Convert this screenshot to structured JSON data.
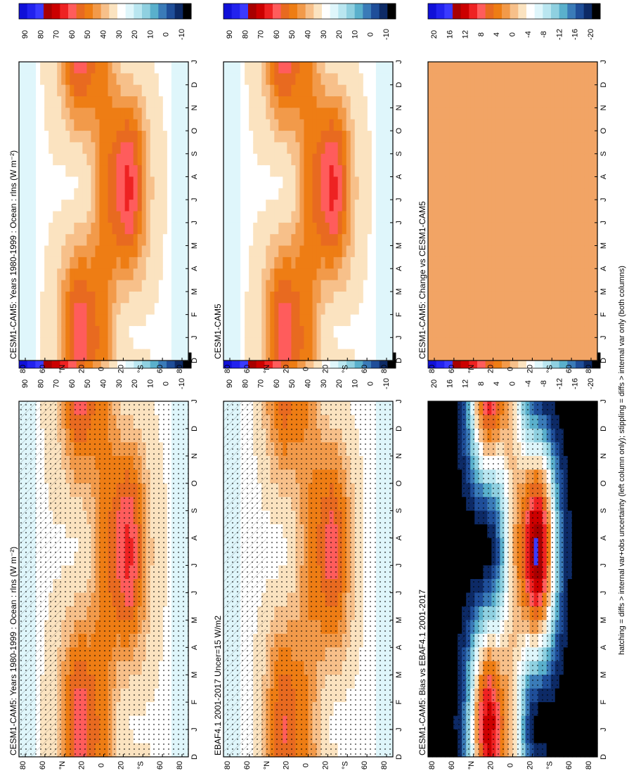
{
  "figure": {
    "footnote": "hatching = diffs > internal var+obs uncertainty (left column only); stippling = diffs > internal var only (both columns)"
  },
  "palettes": {
    "abs": [
      "#1010d8",
      "#2222ee",
      "#3a3aff",
      "#a80000",
      "#cc0000",
      "#ee2222",
      "#ff5c5c",
      "#e86a20",
      "#ee7d14",
      "#f29a4a",
      "#f7c08a",
      "#fbe3c0",
      "#ffffff",
      "#dff6fb",
      "#b9e6f0",
      "#8fd0e0",
      "#5ab0cc",
      "#3a7bb8",
      "#1f4e99",
      "#0d2a66",
      "#000000"
    ],
    "diff": [
      "#1010d8",
      "#2222ee",
      "#3a3aff",
      "#a80000",
      "#cc0000",
      "#ee2222",
      "#ff5c5c",
      "#e86a20",
      "#ee7d14",
      "#f29a4a",
      "#f7c08a",
      "#fbe3c0",
      "#ffffff",
      "#dff6fb",
      "#b9e6f0",
      "#8fd0e0",
      "#5ab0cc",
      "#3a7bb8",
      "#1f4e99",
      "#0d2a66",
      "#000000"
    ],
    "change_fill": "#f2a465"
  },
  "chart_data": [
    {
      "id": "p1",
      "type": "heatmap",
      "title": "CESM1-CAM5: Years 1980-1999 : Ocean : rlns (W m⁻²)",
      "x": [
        "J",
        "F",
        "M",
        "A",
        "M",
        "J",
        "J",
        "A",
        "S",
        "O",
        "N",
        "D"
      ],
      "xlim": [
        "D",
        "J"
      ],
      "y_ticks": [
        "80",
        "60",
        "°N",
        "20",
        "0",
        "20",
        "°S",
        "60",
        "80"
      ],
      "ylim": [
        -90,
        90
      ],
      "colorbar": {
        "labels": [
          "90",
          "80",
          "70",
          "60",
          "50",
          "40",
          "30",
          "20",
          "10",
          "0",
          "-10"
        ],
        "range": [
          -10,
          90
        ]
      },
      "z_range": [
        25,
        75
      ],
      "stippling": true,
      "hatching": true
    },
    {
      "id": "p2",
      "type": "heatmap",
      "title": "CESM1-CAM5: Years 1980-1999 : Ocean : rlns (W m⁻²)",
      "x": [
        "J",
        "F",
        "M",
        "A",
        "M",
        "J",
        "J",
        "A",
        "S",
        "O",
        "N",
        "D"
      ],
      "xlim": [
        "D",
        "J"
      ],
      "y_ticks": [
        "80",
        "60",
        "°N",
        "20",
        "0",
        "20",
        "°S",
        "60",
        "80"
      ],
      "ylim": [
        -90,
        90
      ],
      "colorbar": {
        "labels": [
          "90",
          "80",
          "70",
          "60",
          "50",
          "40",
          "30",
          "20",
          "10",
          "0",
          "-10"
        ],
        "range": [
          -10,
          90
        ]
      },
      "z_range": [
        25,
        75
      ],
      "stippling": false,
      "hatching": false
    },
    {
      "id": "p3",
      "type": "heatmap",
      "title": "EBAF4.1 2001-2017 Uncer=15 W/m2",
      "x": [
        "J",
        "F",
        "M",
        "A",
        "M",
        "J",
        "J",
        "A",
        "S",
        "O",
        "N",
        "D"
      ],
      "xlim": [
        "D",
        "J"
      ],
      "y_ticks": [
        "80",
        "60",
        "°N",
        "20",
        "0",
        "20",
        "°S",
        "60",
        "80"
      ],
      "ylim": [
        -90,
        90
      ],
      "colorbar": {
        "labels": [
          "90",
          "80",
          "70",
          "60",
          "50",
          "40",
          "30",
          "20",
          "10",
          "0",
          "-10"
        ],
        "range": [
          -10,
          90
        ]
      },
      "z_range": [
        25,
        70
      ],
      "stippling": true,
      "hatching": true
    },
    {
      "id": "p4",
      "type": "heatmap",
      "title": "CESM1-CAM5",
      "x": [
        "J",
        "F",
        "M",
        "A",
        "M",
        "J",
        "J",
        "A",
        "S",
        "O",
        "N",
        "D"
      ],
      "xlim": [
        "D",
        "J"
      ],
      "y_ticks": [
        "80",
        "60",
        "°N",
        "20",
        "0",
        "20",
        "°S",
        "60",
        "80"
      ],
      "ylim": [
        -90,
        90
      ],
      "colorbar": {
        "labels": [
          "90",
          "80",
          "70",
          "60",
          "50",
          "40",
          "30",
          "20",
          "10",
          "0",
          "-10"
        ],
        "range": [
          -10,
          90
        ]
      },
      "z_range": [
        25,
        75
      ],
      "stippling": false,
      "hatching": false
    },
    {
      "id": "p5",
      "type": "heatmap",
      "title": "CESM1-CAM5: Bias vs EBAF4.1 2001-2017",
      "x": [
        "J",
        "F",
        "M",
        "A",
        "M",
        "J",
        "J",
        "A",
        "S",
        "O",
        "N",
        "D"
      ],
      "xlim": [
        "D",
        "J"
      ],
      "y_ticks": [
        "80",
        "60",
        "°N",
        "20",
        "0",
        "20",
        "°S",
        "60",
        "80"
      ],
      "ylim": [
        -90,
        90
      ],
      "colorbar": {
        "labels": [
          "20",
          "16",
          "12",
          "8",
          "4",
          "0",
          "-4",
          "-8",
          "-12",
          "-16",
          "-20"
        ],
        "range": [
          -20,
          20
        ]
      },
      "z_range": [
        -20,
        15
      ],
      "stippling": true,
      "hatching": true
    },
    {
      "id": "p6",
      "type": "heatmap",
      "title": "CESM1-CAM5: Change vs CESM1-CAM5",
      "x": [
        "J",
        "F",
        "M",
        "A",
        "M",
        "J",
        "J",
        "A",
        "S",
        "O",
        "N",
        "D"
      ],
      "xlim": [
        "D",
        "J"
      ],
      "y_ticks": [
        "80",
        "60",
        "°N",
        "20",
        "0",
        "20",
        "°S",
        "60",
        "80"
      ],
      "ylim": [
        -90,
        90
      ],
      "colorbar": {
        "labels": [
          "20",
          "16",
          "12",
          "8",
          "4",
          "0",
          "-4",
          "-8",
          "-12",
          "-16",
          "-20"
        ],
        "range": [
          -20,
          20
        ]
      },
      "z_range": [
        0,
        0
      ],
      "stippling": false,
      "hatching": false
    }
  ]
}
